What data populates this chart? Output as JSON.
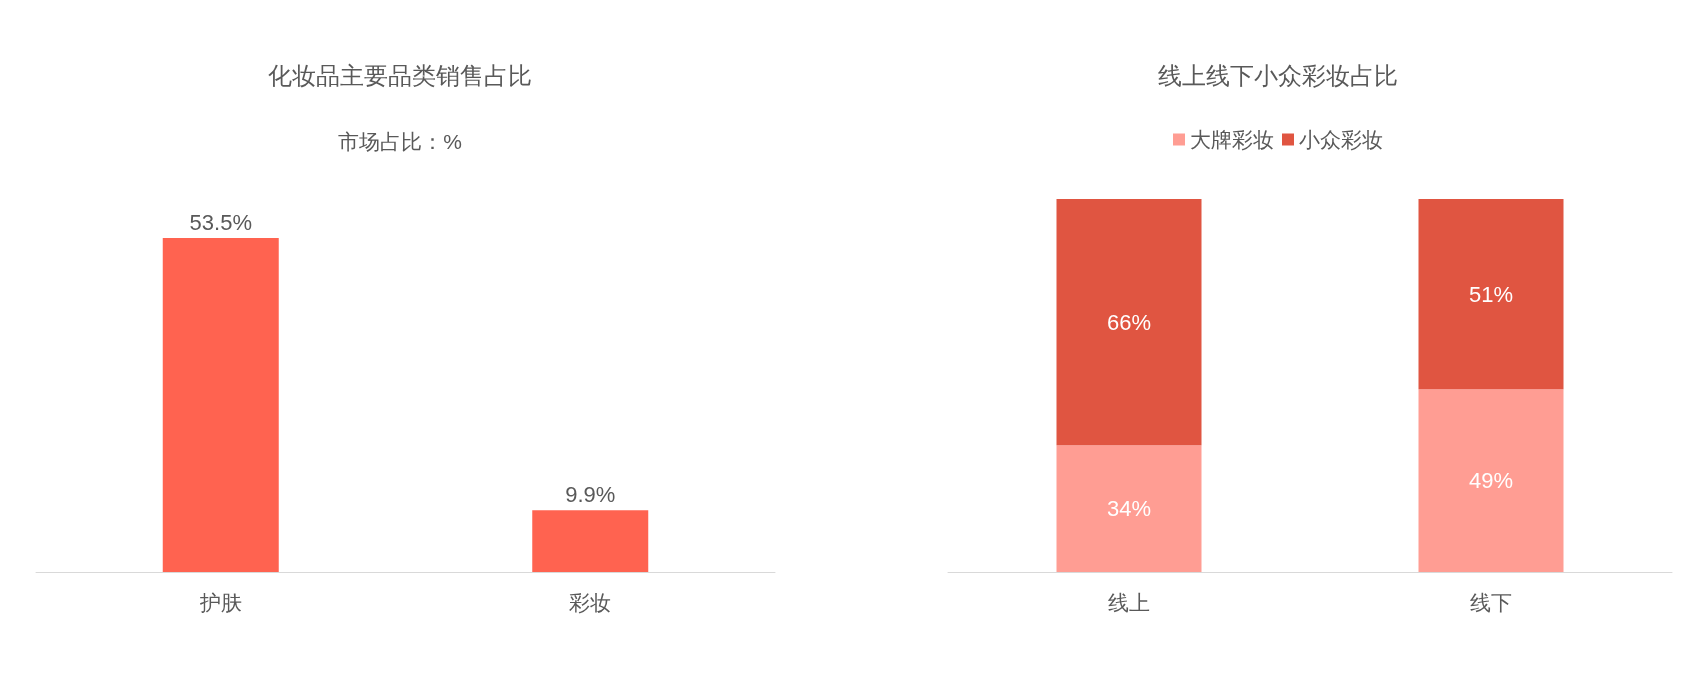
{
  "chart_data": [
    {
      "type": "bar",
      "title": "化妆品主要品类销售占比",
      "subtitle": "市场占比：%",
      "categories": [
        "护肤",
        "彩妆"
      ],
      "values": [
        53.5,
        9.9
      ],
      "color": "#ff6350",
      "value_labels": [
        "53.5%",
        "9.9%"
      ],
      "grid": false
    },
    {
      "type": "bar",
      "title": "线上线下小众彩妆占比",
      "categories": [
        "线上",
        "线下"
      ],
      "stacked": true,
      "legend": "top",
      "grid": false,
      "series": [
        {
          "name": "大牌彩妆",
          "color": "#ff9d93",
          "values": [
            34,
            49
          ],
          "value_labels": [
            "34%",
            "49%"
          ]
        },
        {
          "name": "小众彩妆",
          "color": "#e05541",
          "values": [
            66,
            51
          ],
          "value_labels": [
            "66%",
            "51%"
          ]
        }
      ]
    }
  ]
}
